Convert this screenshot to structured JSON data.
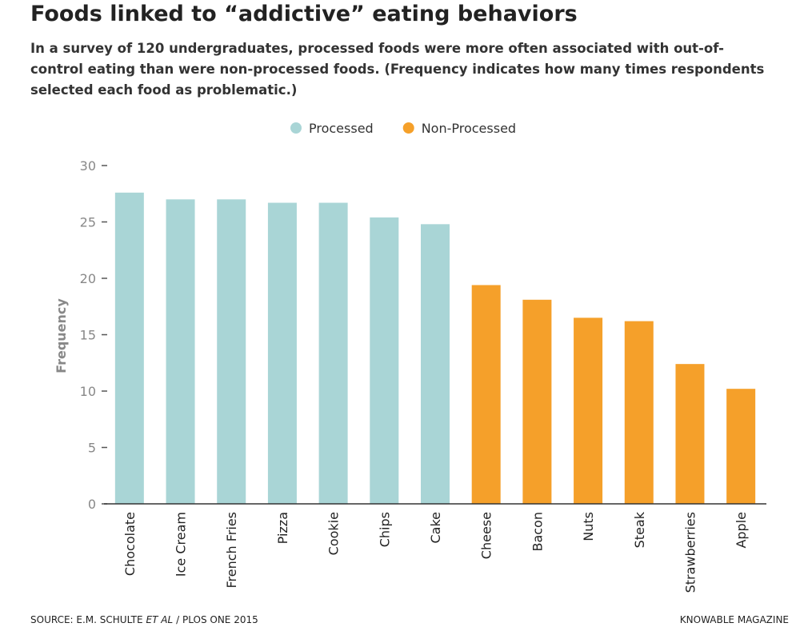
{
  "chart_data": {
    "type": "bar",
    "title": "Foods linked to “addictive” eating behaviors",
    "subtitle": "In a survey of 120 undergraduates, processed foods were more often associated with out-of-control eating than were non-processed foods. (Frequency indicates how many times respondents selected each food as problematic.)",
    "y_label": "Frequency",
    "categories": [
      "Chocolate",
      "Ice Cream",
      "French Fries",
      "Pizza",
      "Cookie",
      "Chips",
      "Cake",
      "Cheese",
      "Bacon",
      "Nuts",
      "Steak",
      "Strawberries",
      "Apple"
    ],
    "series": [
      {
        "name": "Processed",
        "color": "#a9d5d6",
        "values": [
          27.6,
          27.0,
          27.0,
          26.7,
          26.7,
          25.4,
          24.8,
          null,
          null,
          null,
          null,
          null,
          null
        ]
      },
      {
        "name": "Non-Processed",
        "color": "#f5a02a",
        "values": [
          null,
          null,
          null,
          null,
          null,
          null,
          null,
          19.4,
          18.1,
          16.5,
          16.2,
          12.4,
          10.2
        ]
      }
    ],
    "ylim": [
      0,
      30
    ],
    "yticks": [
      0,
      5,
      10,
      15,
      20,
      25,
      30
    ],
    "grid": false,
    "legend": "top",
    "source": [
      "SOURCE: E.M. SCHULTE",
      "ET AL",
      "/ PLOS ONE 2015"
    ],
    "credit": "KNOWABLE MAGAZINE"
  }
}
